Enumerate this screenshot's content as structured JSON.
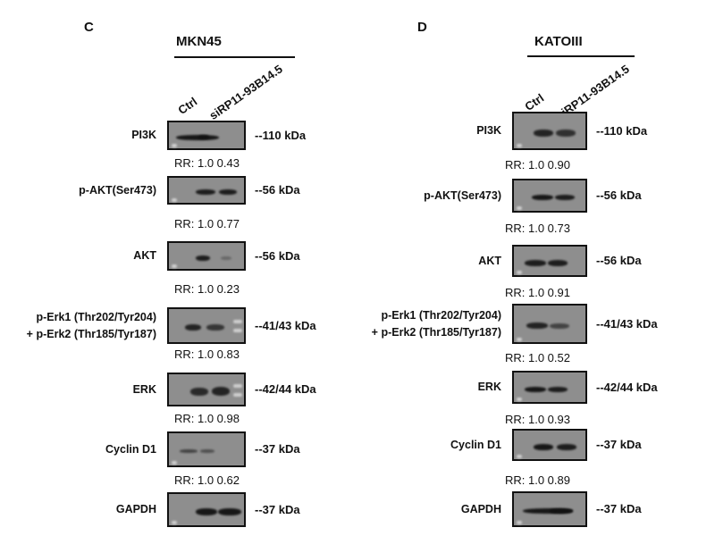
{
  "panels": [
    {
      "letter": "C",
      "cell_line": "MKN45",
      "lanes": [
        "Ctrl",
        "siRP11-93B14.5"
      ],
      "blots": [
        {
          "protein": "PI3K",
          "kda": "--110 kDa",
          "rr": "RR: 1.0  0.43"
        },
        {
          "protein": "p-AKT(Ser473)",
          "kda": "--56 kDa",
          "rr": "RR: 1.0  0.77"
        },
        {
          "protein": "AKT",
          "kda": "--56 kDa",
          "rr": "RR: 1.0  0.23"
        },
        {
          "protein": "p-Erk1 (Thr202/Tyr204)",
          "protein2": "+ p-Erk2 (Thr185/Tyr187)",
          "kda": "--41/43 kDa",
          "rr": "RR: 1.0  0.83"
        },
        {
          "protein": "ERK",
          "kda": "--42/44 kDa",
          "rr": "RR: 1.0  0.98"
        },
        {
          "protein": "Cyclin D1",
          "kda": "--37 kDa",
          "rr": "RR: 1.0  0.62"
        },
        {
          "protein": "GAPDH",
          "kda": "--37 kDa"
        }
      ]
    },
    {
      "letter": "D",
      "cell_line": "KATOIII",
      "lanes": [
        "Ctrl",
        "siRP11-93B14.5"
      ],
      "blots": [
        {
          "protein": "PI3K",
          "kda": "--110 kDa",
          "rr": "RR: 1.0  0.90"
        },
        {
          "protein": "p-AKT(Ser473)",
          "kda": "--56 kDa",
          "rr": "RR: 1.0  0.73"
        },
        {
          "protein": "AKT",
          "kda": "--56 kDa",
          "rr": "RR: 1.0  0.91"
        },
        {
          "protein": "p-Erk1 (Thr202/Tyr204)",
          "protein2": "+ p-Erk2 (Thr185/Tyr187)",
          "kda": "--41/43 kDa",
          "rr": "RR: 1.0  0.52"
        },
        {
          "protein": "ERK",
          "kda": "--42/44 kDa",
          "rr": "RR: 1.0  0.93"
        },
        {
          "protein": "Cyclin D1",
          "kda": "--37 kDa",
          "rr": "RR: 1.0  0.89"
        },
        {
          "protein": "GAPDH",
          "kda": "--37 kDa"
        }
      ]
    }
  ]
}
